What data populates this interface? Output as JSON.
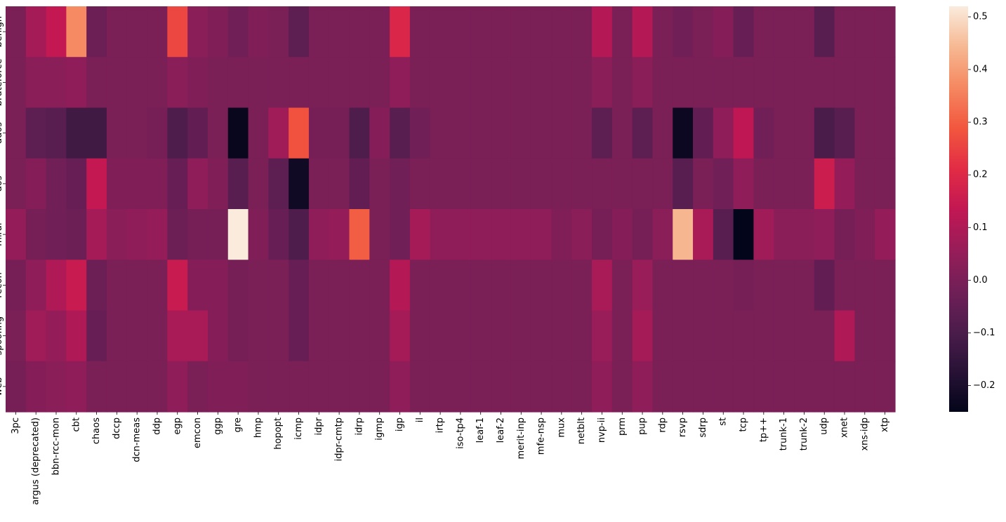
{
  "chart_data": {
    "type": "heatmap",
    "title": "",
    "xlabel": "",
    "ylabel": "",
    "rows": [
      "benign",
      "bruteforce",
      "ddos",
      "dos",
      "mirai",
      "recon",
      "spoofing",
      "web"
    ],
    "columns": [
      "3pc",
      "argus (deprecated)",
      "bbn-rcc-mon",
      "cbt",
      "chaos",
      "dccp",
      "dcn-meas",
      "ddp",
      "egp",
      "emcon",
      "ggp",
      "gre",
      "hmp",
      "hopopt",
      "icmp",
      "idpr",
      "idpr-cmtp",
      "idrp",
      "igmp",
      "igp",
      "il",
      "irtp",
      "iso-tp4",
      "leaf-1",
      "leaf-2",
      "merit-inp",
      "mfe-nsp",
      "mux",
      "netblt",
      "nvp-ii",
      "prm",
      "pup",
      "rdp",
      "rsvp",
      "sdrp",
      "st",
      "tcp",
      "tp++",
      "trunk-1",
      "trunk-2",
      "udp",
      "xnet",
      "xns-idp",
      "xtp"
    ],
    "values": [
      [
        0.0,
        0.08,
        0.14,
        0.37,
        -0.03,
        0.0,
        0.0,
        0.0,
        0.26,
        0.03,
        0.01,
        -0.02,
        0.01,
        0.0,
        -0.06,
        0.0,
        0.0,
        0.0,
        0.0,
        0.19,
        0.0,
        0.0,
        0.0,
        0.0,
        0.0,
        0.0,
        0.0,
        0.0,
        0.0,
        0.11,
        0.0,
        0.11,
        0.0,
        -0.02,
        0.0,
        0.02,
        -0.04,
        0.0,
        0.0,
        0.0,
        -0.07,
        0.0,
        0.0,
        0.0
      ],
      [
        0.0,
        0.03,
        0.03,
        0.04,
        0.0,
        0.0,
        0.0,
        0.0,
        0.03,
        0.01,
        0.0,
        0.0,
        0.0,
        0.0,
        0.0,
        0.0,
        0.0,
        0.0,
        0.0,
        0.04,
        0.0,
        0.0,
        0.0,
        0.0,
        0.0,
        0.0,
        0.0,
        0.0,
        0.0,
        0.03,
        0.0,
        0.03,
        0.0,
        0.0,
        0.0,
        0.0,
        0.0,
        0.0,
        0.0,
        0.0,
        0.0,
        0.0,
        0.0,
        0.0
      ],
      [
        0.0,
        -0.06,
        -0.07,
        -0.12,
        -0.12,
        0.0,
        0.0,
        -0.01,
        -0.09,
        -0.05,
        0.0,
        -0.24,
        0.0,
        0.07,
        0.28,
        -0.01,
        -0.01,
        -0.09,
        0.02,
        -0.07,
        -0.02,
        0.0,
        0.0,
        0.0,
        0.0,
        0.0,
        0.0,
        0.0,
        0.0,
        -0.06,
        0.0,
        -0.06,
        0.0,
        -0.23,
        -0.05,
        0.04,
        0.13,
        -0.02,
        0.0,
        0.0,
        -0.1,
        -0.07,
        0.0,
        0.0
      ],
      [
        0.0,
        0.02,
        -0.02,
        -0.04,
        0.14,
        0.01,
        0.01,
        0.01,
        -0.04,
        0.04,
        0.01,
        -0.07,
        0.0,
        -0.06,
        -0.22,
        0.0,
        0.0,
        -0.05,
        0.0,
        -0.02,
        0.0,
        0.0,
        0.0,
        0.0,
        0.0,
        0.0,
        0.0,
        0.0,
        0.0,
        0.0,
        0.0,
        0.0,
        0.0,
        -0.07,
        0.0,
        -0.02,
        0.04,
        0.0,
        0.0,
        0.0,
        0.16,
        0.05,
        0.0,
        0.0
      ],
      [
        0.05,
        -0.01,
        -0.02,
        -0.03,
        0.08,
        0.03,
        0.04,
        0.05,
        -0.03,
        -0.01,
        -0.01,
        0.52,
        0.01,
        -0.04,
        -0.09,
        0.04,
        0.05,
        0.3,
        0.0,
        -0.02,
        0.08,
        0.04,
        0.04,
        0.04,
        0.04,
        0.04,
        0.04,
        0.01,
        0.03,
        -0.01,
        0.02,
        -0.01,
        0.03,
        0.44,
        0.09,
        -0.07,
        -0.25,
        0.07,
        0.03,
        0.03,
        0.04,
        -0.01,
        0.01,
        0.05
      ],
      [
        -0.01,
        0.04,
        0.1,
        0.15,
        -0.03,
        0.0,
        0.0,
        0.0,
        0.15,
        0.02,
        0.02,
        -0.01,
        0.0,
        0.0,
        -0.04,
        0.0,
        0.0,
        0.0,
        0.0,
        0.11,
        0.0,
        0.0,
        0.0,
        0.0,
        0.0,
        0.0,
        0.0,
        0.0,
        0.0,
        0.09,
        0.0,
        0.06,
        0.0,
        0.0,
        0.0,
        0.0,
        -0.01,
        0.0,
        0.0,
        0.0,
        -0.05,
        0.0,
        0.0,
        0.0
      ],
      [
        0.0,
        0.07,
        0.05,
        0.1,
        -0.04,
        0.0,
        0.0,
        0.0,
        0.09,
        0.09,
        0.02,
        -0.01,
        0.0,
        0.0,
        -0.04,
        0.0,
        0.0,
        0.0,
        0.0,
        0.08,
        0.0,
        0.0,
        0.0,
        0.0,
        0.0,
        0.0,
        0.0,
        0.0,
        0.0,
        0.06,
        0.0,
        0.08,
        0.0,
        0.0,
        0.0,
        0.0,
        0.0,
        0.0,
        0.0,
        0.0,
        0.0,
        0.1,
        0.0,
        0.0
      ],
      [
        -0.01,
        0.02,
        0.03,
        0.04,
        0.0,
        0.0,
        0.0,
        0.0,
        0.04,
        0.0,
        0.01,
        0.01,
        0.0,
        0.0,
        0.0,
        0.0,
        0.0,
        0.0,
        0.0,
        0.04,
        0.0,
        0.0,
        0.0,
        0.0,
        0.0,
        0.0,
        0.0,
        0.0,
        0.0,
        0.04,
        0.0,
        0.04,
        0.0,
        0.0,
        0.0,
        0.0,
        0.0,
        0.0,
        0.0,
        0.0,
        0.0,
        0.0,
        0.0,
        0.0
      ]
    ],
    "vmin": -0.25,
    "vmax": 0.52,
    "colormap": "rocket",
    "colorbar": {
      "ticks": [
        -0.2,
        -0.1,
        0.0,
        0.1,
        0.2,
        0.3,
        0.4,
        0.5
      ],
      "tick_labels": [
        "−0.2",
        "−0.1",
        "0.0",
        "0.1",
        "0.2",
        "0.3",
        "0.4",
        "0.5"
      ]
    },
    "grid": false
  }
}
